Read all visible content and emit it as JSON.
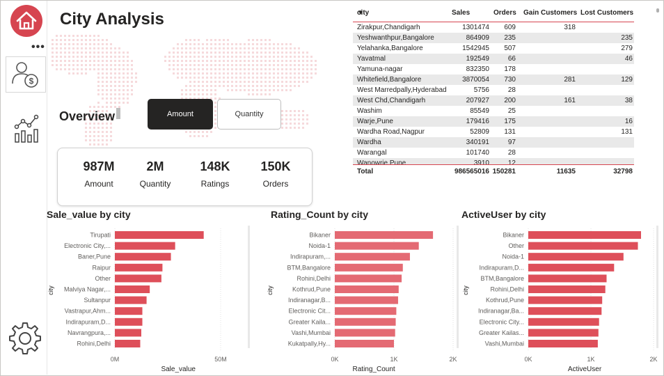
{
  "page": {
    "title": "City Analysis",
    "overview_label": "Overview",
    "buttons": {
      "amount": "Amount",
      "quantity": "Quantity"
    },
    "more_dots": "•••",
    "colors": {
      "accent": "#d64550",
      "bar": "#de4f5a",
      "bar_light": "#e46a73",
      "button_dark": "#252423"
    }
  },
  "sidebar": {
    "items": [
      {
        "name": "home",
        "icon": "home-icon"
      },
      {
        "name": "sales",
        "icon": "user-dollar-icon"
      },
      {
        "name": "analytics",
        "icon": "line-chart-icon"
      },
      {
        "name": "settings",
        "icon": "gear-icon"
      }
    ]
  },
  "kpis": [
    {
      "value": "987M",
      "label": "Amount"
    },
    {
      "value": "2M",
      "label": "Quantity"
    },
    {
      "value": "148K",
      "label": "Ratings"
    },
    {
      "value": "150K",
      "label": "Orders"
    }
  ],
  "table": {
    "headers": [
      "city",
      "Sales",
      "Orders",
      "Gain Customers",
      "Lost Customers"
    ],
    "rows": [
      [
        "Zirakpur,Chandigarh",
        "1301474",
        "609",
        "318",
        ""
      ],
      [
        "Yeshwanthpur,Bangalore",
        "864909",
        "235",
        "",
        "235"
      ],
      [
        "Yelahanka,Bangalore",
        "1542945",
        "507",
        "",
        "279"
      ],
      [
        "Yavatmal",
        "192549",
        "66",
        "",
        "46"
      ],
      [
        "Yamuna-nagar",
        "832350",
        "178",
        "",
        ""
      ],
      [
        "Whitefield,Bangalore",
        "3870054",
        "730",
        "281",
        "129"
      ],
      [
        "West Marredpally,Hyderabad",
        "5756",
        "28",
        "",
        ""
      ],
      [
        "West Chd,Chandigarh",
        "207927",
        "200",
        "161",
        "38"
      ],
      [
        "Washim",
        "85549",
        "25",
        "",
        ""
      ],
      [
        "Warje,Pune",
        "179416",
        "175",
        "",
        "16"
      ],
      [
        "Wardha Road,Nagpur",
        "52809",
        "131",
        "",
        "131"
      ],
      [
        "Wardha",
        "340191",
        "97",
        "",
        ""
      ],
      [
        "Warangal",
        "101740",
        "28",
        "",
        ""
      ],
      [
        "Wanowrie,Pune",
        "3910",
        "12",
        "",
        ""
      ]
    ],
    "total": [
      "Total",
      "986565016",
      "150281",
      "11635",
      "32798"
    ]
  },
  "chart_data": [
    {
      "type": "bar",
      "orientation": "horizontal",
      "title": "Sale_value by city",
      "xlabel": "Sale_value",
      "ylabel": "city",
      "xlim": [
        0,
        50
      ],
      "x_ticks": [
        "0M",
        "50M"
      ],
      "categories": [
        "Tirupati",
        "Electronic City,...",
        "Baner,Pune",
        "Raipur",
        "Other",
        "Malviya Nagar,...",
        "Sultanpur",
        "Vastrapur,Ahm...",
        "Indirapuram,D...",
        "Navrangpura,...",
        "Rohini,Delhi"
      ],
      "values": [
        42,
        28.5,
        26.5,
        22.5,
        22,
        16.5,
        15,
        13,
        13,
        12.5,
        12
      ]
    },
    {
      "type": "bar",
      "orientation": "horizontal",
      "title": "Rating_Count by city",
      "xlabel": "Rating_Count",
      "ylabel": "city",
      "xlim": [
        0,
        2000
      ],
      "x_ticks": [
        "0K",
        "1K",
        "2K"
      ],
      "categories": [
        "Bikaner",
        "Noida-1",
        "Indirapuram,...",
        "BTM,Bangalore",
        "Rohini,Delhi",
        "Kothrud,Pune",
        "Indiranagar,B...",
        "Electronic Cit...",
        "Greater Kaila...",
        "Vashi,Mumbai",
        "Kukatpally,Hy..."
      ],
      "values": [
        1660,
        1420,
        1270,
        1150,
        1130,
        1080,
        1070,
        1040,
        1030,
        1020,
        1000
      ]
    },
    {
      "type": "bar",
      "orientation": "horizontal",
      "title": "ActiveUser by city",
      "xlabel": "ActiveUser",
      "ylabel": "city",
      "xlim": [
        0,
        2000
      ],
      "x_ticks": [
        "0K",
        "1K",
        "2K"
      ],
      "categories": [
        "Bikaner",
        "Other",
        "Noida-1",
        "Indirapuram,D...",
        "BTM,Bangalore",
        "Rohini,Delhi",
        "Kothrud,Pune",
        "Indiranagar,Ba...",
        "Electronic City...",
        "Greater Kailas...",
        "Vashi,Mumbai"
      ],
      "values": [
        1800,
        1750,
        1520,
        1370,
        1250,
        1230,
        1180,
        1170,
        1130,
        1120,
        1110
      ]
    }
  ]
}
